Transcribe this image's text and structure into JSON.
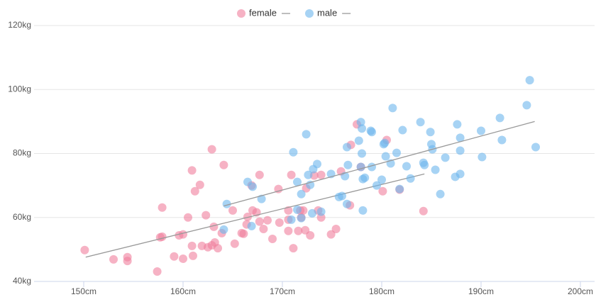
{
  "chart_data": {
    "type": "scatter",
    "xlim": [
      145,
      200
    ],
    "xticks": [
      {
        "value": 150,
        "label": "150cm"
      },
      {
        "value": 160,
        "label": "160cm"
      },
      {
        "value": 170,
        "label": "170cm"
      },
      {
        "value": 180,
        "label": "180cm"
      },
      {
        "value": 190,
        "label": "190cm"
      },
      {
        "value": 200,
        "label": "200cm"
      }
    ],
    "ylim": [
      40,
      120
    ],
    "yticks": [
      {
        "value": 40,
        "label": "40kg"
      },
      {
        "value": 60,
        "label": "60kg"
      },
      {
        "value": 80,
        "label": "80kg"
      },
      {
        "value": 100,
        "label": "100kg"
      },
      {
        "value": 120,
        "label": "120kg"
      }
    ],
    "grid": true,
    "legend": "top",
    "series": [
      {
        "name": "female",
        "color": "#f07f9c",
        "x": [
          150.1,
          153.0,
          154.4,
          154.4,
          157.4,
          157.7,
          157.9,
          157.9,
          159.1,
          159.6,
          160.0,
          160.0,
          160.5,
          160.9,
          161.0,
          160.9,
          161.2,
          161.7,
          161.9,
          162.3,
          162.5,
          162.9,
          162.9,
          163.1,
          163.2,
          163.5,
          163.9,
          164.1,
          165.0,
          165.2,
          165.9,
          166.1,
          166.4,
          166.5,
          166.9,
          167.0,
          167.4,
          167.7,
          167.7,
          168.1,
          168.5,
          169.0,
          169.6,
          169.7,
          170.6,
          170.6,
          170.6,
          170.9,
          171.1,
          171.6,
          171.8,
          171.9,
          172.1,
          172.3,
          172.4,
          172.8,
          173.2,
          173.6,
          173.9,
          173.9,
          174.9,
          175.4,
          175.9,
          176.8,
          176.9,
          177.5,
          177.9,
          180.1,
          180.5,
          181.8,
          184.2
        ],
        "values": [
          49.8,
          46.9,
          47.6,
          46.4,
          43.1,
          53.8,
          63.1,
          54.0,
          47.8,
          54.4,
          47.1,
          54.7,
          60.0,
          51.1,
          48.0,
          74.7,
          68.2,
          70.2,
          51.1,
          60.7,
          50.7,
          81.3,
          51.3,
          57.1,
          52.2,
          50.4,
          55.1,
          76.4,
          62.2,
          51.8,
          55.1,
          54.9,
          57.8,
          60.2,
          70.0,
          62.2,
          61.6,
          73.3,
          58.7,
          56.4,
          59.1,
          53.3,
          68.9,
          58.4,
          62.2,
          55.8,
          59.3,
          73.3,
          50.4,
          55.8,
          62.2,
          60.0,
          62.2,
          56.0,
          69.1,
          54.4,
          73.1,
          62.2,
          73.3,
          60.0,
          54.7,
          56.4,
          74.4,
          63.8,
          82.7,
          89.1,
          75.8,
          68.2,
          84.2,
          68.7,
          62.0
        ],
        "trend": {
          "color": "#999999",
          "x": [
            150.2,
            184.3
          ],
          "y": [
            47.6,
            73.6
          ]
        }
      },
      {
        "name": "male",
        "color": "#6cb6ec",
        "x": [
          164.4,
          164.1,
          166.5,
          166.9,
          167.0,
          167.9,
          171.1,
          170.9,
          171.5,
          171.5,
          171.9,
          171.9,
          172.4,
          172.6,
          172.8,
          173.0,
          173.5,
          173.1,
          173.9,
          174.9,
          175.7,
          176.0,
          176.3,
          176.5,
          176.5,
          176.6,
          177.7,
          177.9,
          177.9,
          178.0,
          178.0,
          178.1,
          178.1,
          178.3,
          178.9,
          179.0,
          179.0,
          179.5,
          180.0,
          180.2,
          180.3,
          180.4,
          180.9,
          181.1,
          181.5,
          181.8,
          182.1,
          182.5,
          182.9,
          183.9,
          184.2,
          184.3,
          184.9,
          185.0,
          185.1,
          185.4,
          185.9,
          186.4,
          187.4,
          187.6,
          187.9,
          187.9,
          187.9,
          190.0,
          190.1,
          191.9,
          192.1,
          194.6,
          194.9,
          195.5
        ],
        "values": [
          64.2,
          56.2,
          71.1,
          57.3,
          69.6,
          65.8,
          80.4,
          59.3,
          71.1,
          62.4,
          67.3,
          59.8,
          86.0,
          73.3,
          70.2,
          61.3,
          76.7,
          75.1,
          61.8,
          73.6,
          66.4,
          66.7,
          72.9,
          64.2,
          82.0,
          76.4,
          84.0,
          89.8,
          75.8,
          87.8,
          80.0,
          72.0,
          62.2,
          72.4,
          87.1,
          86.7,
          75.8,
          70.0,
          71.8,
          82.9,
          83.3,
          79.1,
          76.9,
          94.2,
          80.2,
          68.9,
          87.3,
          76.0,
          72.2,
          89.8,
          77.1,
          76.4,
          86.7,
          82.9,
          81.3,
          74.9,
          67.3,
          78.7,
          72.7,
          89.1,
          84.9,
          80.9,
          73.6,
          87.1,
          78.9,
          91.1,
          84.2,
          95.1,
          102.9,
          82.0
        ],
        "trend": {
          "color": "#999999",
          "x": [
            164.1,
            195.4
          ],
          "y": [
            63.6,
            90.0
          ]
        }
      }
    ]
  }
}
